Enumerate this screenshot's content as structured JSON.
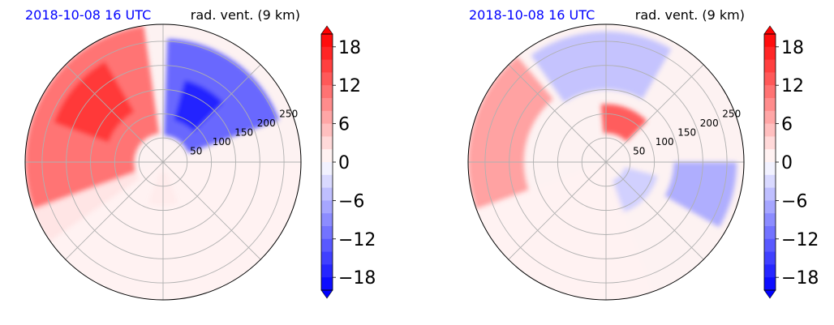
{
  "chart_data": [
    {
      "type": "heatmap",
      "projection": "polar",
      "title_left": "2018-10-08 16 UTC",
      "title_right": "rad. vent. (9 km)",
      "title_left_color": "#0000ff",
      "radial_ticks": [
        "50",
        "100",
        "150",
        "200",
        "250"
      ],
      "radial_values": [
        50,
        100,
        150,
        200,
        250
      ],
      "rmax": 285,
      "angular_gridlines_deg": [
        0,
        45,
        90,
        135,
        180,
        225,
        270,
        315
      ],
      "colorbar": {
        "ticks": [
          "18",
          "12",
          "6",
          "0",
          "−6",
          "−12",
          "−18"
        ],
        "tick_values": [
          18,
          12,
          6,
          0,
          -6,
          -12,
          -18
        ],
        "vmin": -20,
        "vmax": 20,
        "levels": 20,
        "extend": "both",
        "colormap": "bwr",
        "low_color": "#0000ff",
        "high_color": "#ff0000"
      },
      "regions": [
        {
          "value": 12,
          "r": [
            60,
            285
          ],
          "theta_deg": [
            98,
            215
          ]
        },
        {
          "value": 16,
          "r": [
            120,
            240
          ],
          "theta_deg": [
            120,
            160
          ]
        },
        {
          "value": 6,
          "r": [
            20,
            90
          ],
          "theta_deg": [
            250,
            290
          ]
        },
        {
          "value": -13,
          "r": [
            55,
            255
          ],
          "theta_deg": [
            20,
            88
          ]
        },
        {
          "value": -18,
          "r": [
            90,
            175
          ],
          "theta_deg": [
            45,
            75
          ]
        },
        {
          "value": 1,
          "r": [
            0,
            285
          ],
          "theta_deg": [
            200,
            360
          ]
        }
      ]
    },
    {
      "type": "heatmap",
      "projection": "polar",
      "title_left": "2018-10-08 16 UTC",
      "title_right": "rad. vent. (9 km)",
      "title_left_color": "#0000ff",
      "radial_ticks": [
        "50",
        "100",
        "150",
        "200",
        "250"
      ],
      "radial_values": [
        50,
        100,
        150,
        200,
        250
      ],
      "rmax": 285,
      "angular_gridlines_deg": [
        0,
        45,
        90,
        135,
        180,
        225,
        270,
        315
      ],
      "colorbar": {
        "ticks": [
          "18",
          "12",
          "6",
          "0",
          "−6",
          "−12",
          "−18"
        ],
        "tick_values": [
          18,
          12,
          6,
          0,
          -6,
          -12,
          -18
        ],
        "vmin": -20,
        "vmax": 20,
        "levels": 20,
        "extend": "both",
        "colormap": "bwr",
        "low_color": "#0000ff",
        "high_color": "#ff0000"
      },
      "regions": [
        {
          "value": 8,
          "r": [
            170,
            285
          ],
          "theta_deg": [
            130,
            200
          ]
        },
        {
          "value": 14,
          "r": [
            60,
            120
          ],
          "theta_deg": [
            45,
            95
          ]
        },
        {
          "value": -5,
          "r": [
            150,
            270
          ],
          "theta_deg": [
            60,
            125
          ]
        },
        {
          "value": -7,
          "r": [
            140,
            270
          ],
          "theta_deg": [
            330,
            360
          ]
        },
        {
          "value": -4,
          "r": [
            40,
            110
          ],
          "theta_deg": [
            285,
            345
          ]
        },
        {
          "value": 1,
          "r": [
            0,
            285
          ],
          "theta_deg": [
            200,
            290
          ]
        }
      ]
    }
  ]
}
